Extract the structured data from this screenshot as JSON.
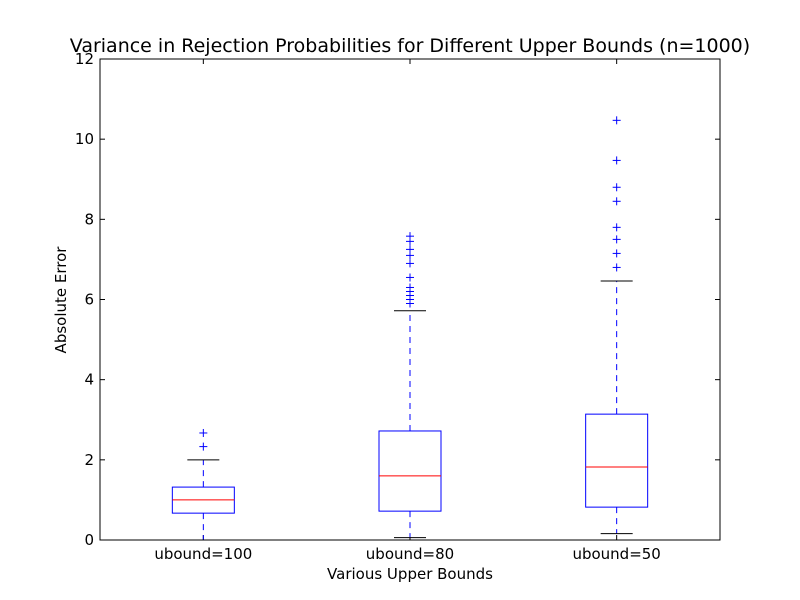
{
  "chart_data": {
    "type": "box",
    "title": "Variance in Rejection Probabilities for Different Upper Bounds (n=1000)",
    "xlabel": "Various Upper Bounds",
    "ylabel": "Absolute Error",
    "ylim": [
      0,
      12
    ],
    "yticks": [
      0,
      2,
      4,
      6,
      8,
      10,
      12
    ],
    "categories": [
      "ubound=100",
      "ubound=80",
      "ubound=50"
    ],
    "boxes": [
      {
        "category": "ubound=100",
        "whisker_low": 0.0,
        "q1": 0.67,
        "median": 1.0,
        "q3": 1.32,
        "whisker_high": 2.0,
        "outliers": [
          2.33,
          2.67
        ]
      },
      {
        "category": "ubound=80",
        "whisker_low": 0.06,
        "q1": 0.72,
        "median": 1.6,
        "q3": 2.72,
        "whisker_high": 5.72,
        "outliers": [
          5.9,
          6.0,
          6.1,
          6.2,
          6.3,
          6.55,
          6.9,
          7.1,
          7.25,
          7.45,
          7.58
        ]
      },
      {
        "category": "ubound=50",
        "whisker_low": 0.16,
        "q1": 0.82,
        "median": 1.82,
        "q3": 3.14,
        "whisker_high": 6.46,
        "outliers": [
          6.8,
          7.15,
          7.5,
          7.8,
          8.45,
          8.8,
          9.47,
          10.47
        ]
      }
    ],
    "grid": false,
    "colors": {
      "box": "#0000ff",
      "median": "#ff0000",
      "whisker": "#0000ff",
      "cap": "#000000",
      "outlier": "#0000ff",
      "axes": "#000000"
    }
  }
}
